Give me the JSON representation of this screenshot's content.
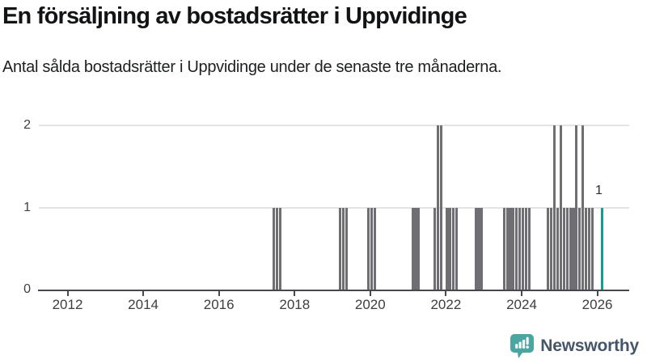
{
  "header": {
    "title": "En försäljning av bostadsrätter i Uppvidinge",
    "subtitle": "Antal sålda bostadsrätter i Uppvidinge under de senaste tre månaderna."
  },
  "chart": {
    "y_ticks": [
      "0",
      "1",
      "2"
    ],
    "colors": {
      "bar": "#6e6e73",
      "highlight": "#169c95",
      "grid": "#e4e4e4",
      "axis": "#47474c",
      "tick_label": "#3c3e40",
      "value_label": "#2a2c2e"
    }
  },
  "chart_data": {
    "type": "bar",
    "title": "En försäljning av bostadsrätter i Uppvidinge",
    "subtitle": "Antal sålda bostadsrätter i Uppvidinge under de senaste tre månaderna.",
    "xlabel": "",
    "ylabel": "",
    "ylim": [
      0,
      2
    ],
    "grid": "horizontal",
    "x_axis": {
      "range_decimal_years": [
        2011.24,
        2026.85
      ],
      "ticks": [
        2012,
        2014,
        2016,
        2018,
        2020,
        2022,
        2024,
        2026
      ]
    },
    "points": [
      {
        "month": "2017-06",
        "value": 1
      },
      {
        "month": "2017-07",
        "value": 1
      },
      {
        "month": "2017-08",
        "value": 1
      },
      {
        "month": "2019-03",
        "value": 1
      },
      {
        "month": "2019-04",
        "value": 1
      },
      {
        "month": "2019-05",
        "value": 1
      },
      {
        "month": "2019-12",
        "value": 1
      },
      {
        "month": "2020-01",
        "value": 1
      },
      {
        "month": "2020-02",
        "value": 1
      },
      {
        "month": "2021-02",
        "value": 1
      },
      {
        "month": "2021-03",
        "value": 1
      },
      {
        "month": "2021-04",
        "value": 1
      },
      {
        "month": "2021-09",
        "value": 1
      },
      {
        "month": "2021-10",
        "value": 2
      },
      {
        "month": "2021-11",
        "value": 2
      },
      {
        "month": "2022-01",
        "value": 1
      },
      {
        "month": "2022-02",
        "value": 1
      },
      {
        "month": "2022-03",
        "value": 1
      },
      {
        "month": "2022-04",
        "value": 1
      },
      {
        "month": "2022-10",
        "value": 1
      },
      {
        "month": "2022-11",
        "value": 1
      },
      {
        "month": "2022-12",
        "value": 1
      },
      {
        "month": "2023-07",
        "value": 1
      },
      {
        "month": "2023-08",
        "value": 1
      },
      {
        "month": "2023-09",
        "value": 1
      },
      {
        "month": "2023-10",
        "value": 1
      },
      {
        "month": "2023-11",
        "value": 1
      },
      {
        "month": "2023-12",
        "value": 1
      },
      {
        "month": "2024-01",
        "value": 1
      },
      {
        "month": "2024-02",
        "value": 1
      },
      {
        "month": "2024-03",
        "value": 1
      },
      {
        "month": "2024-09",
        "value": 1
      },
      {
        "month": "2024-10",
        "value": 1
      },
      {
        "month": "2024-11",
        "value": 2
      },
      {
        "month": "2024-12",
        "value": 1
      },
      {
        "month": "2025-01",
        "value": 2
      },
      {
        "month": "2025-02",
        "value": 1
      },
      {
        "month": "2025-03",
        "value": 1
      },
      {
        "month": "2025-04",
        "value": 1
      },
      {
        "month": "2025-05",
        "value": 1
      },
      {
        "month": "2025-06",
        "value": 2
      },
      {
        "month": "2025-07",
        "value": 1
      },
      {
        "month": "2025-08",
        "value": 2
      },
      {
        "month": "2025-09",
        "value": 1
      },
      {
        "month": "2025-10",
        "value": 1
      },
      {
        "month": "2025-11",
        "value": 1
      },
      {
        "month": "2026-02",
        "value": 1,
        "highlight": true,
        "label": "1"
      }
    ],
    "legend": null
  },
  "footer": {
    "brand": "Newsworthy"
  }
}
